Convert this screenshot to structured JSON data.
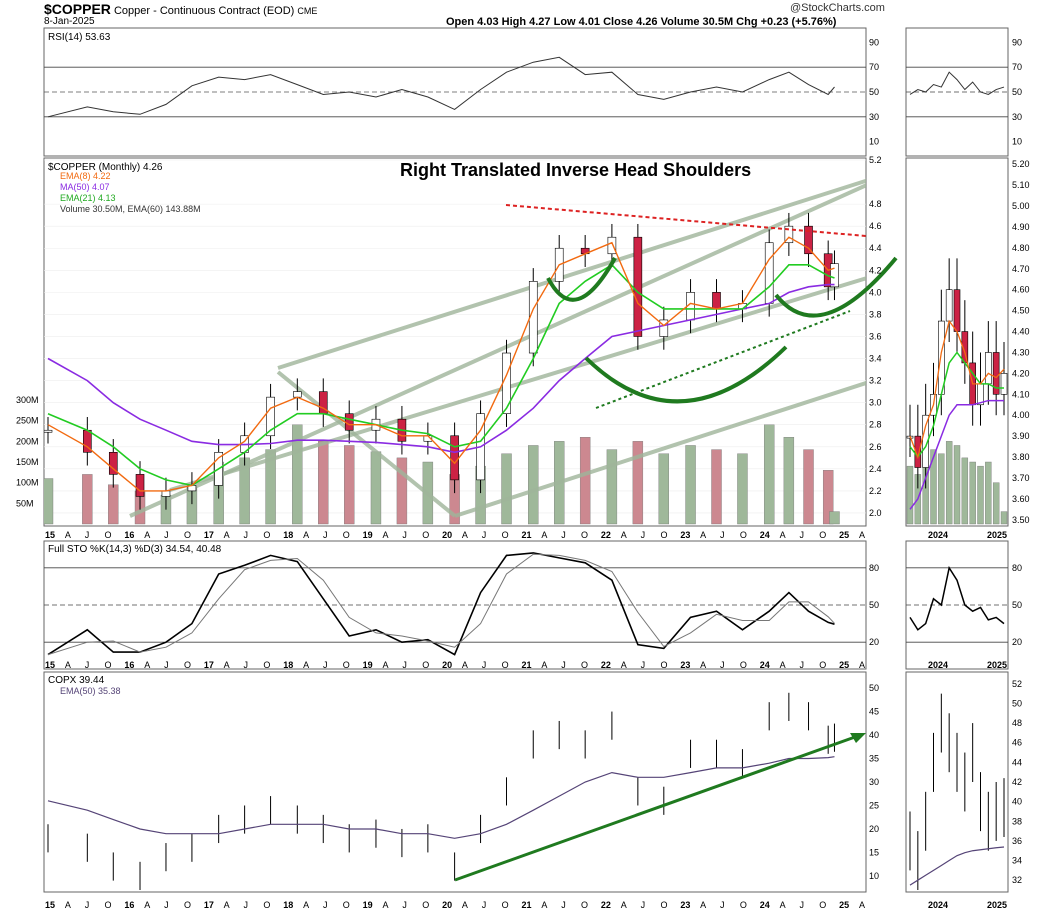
{
  "header": {
    "symbol": "$COPPER",
    "name": "Copper - Continuous Contract (EOD)",
    "exchange": "CME",
    "date": "8-Jan-2025",
    "ohlc": "Open 4.03  High 4.27  Low 4.01  Close 4.26  Volume 30.5M  Chg +0.23 (+5.76%)",
    "watermark": "@StockCharts.com"
  },
  "chart_data": [
    {
      "type": "line",
      "panel": "rsi",
      "label": "RSI(14) 53.63",
      "yticks": [
        "90",
        "70",
        "50",
        "30",
        "10"
      ],
      "ylim": [
        0,
        100
      ],
      "levels": [
        70,
        50,
        30
      ],
      "x": [
        2015.0,
        2015.5,
        2015.83,
        2016.17,
        2016.5,
        2016.83,
        2017.17,
        2017.5,
        2017.83,
        2018.17,
        2018.5,
        2018.83,
        2019.17,
        2019.5,
        2019.83,
        2020.17,
        2020.5,
        2020.83,
        2021.17,
        2021.5,
        2021.83,
        2022.17,
        2022.5,
        2022.83,
        2023.17,
        2023.5,
        2023.83,
        2024.17,
        2024.42,
        2024.67,
        2024.92,
        2025.0
      ],
      "values": [
        30,
        38,
        34,
        32,
        40,
        55,
        62,
        60,
        64,
        56,
        48,
        50,
        46,
        52,
        46,
        36,
        52,
        66,
        74,
        78,
        64,
        66,
        48,
        44,
        50,
        54,
        50,
        60,
        66,
        56,
        48,
        54
      ]
    },
    {
      "type": "candlestick",
      "panel": "price",
      "label": "$COPPER (Monthly) 4.26",
      "annotation": "Right Translated Inverse Head Shoulders",
      "legend": [
        "EMA(8) 4.22",
        "MA(50) 4.07",
        "EMA(21) 4.13",
        "Volume 30.50M, EMA(60) 143.88M"
      ],
      "ylim": [
        1.9,
        5.2
      ],
      "yticks": [
        "5.2",
        "4.8",
        "4.6",
        "4.4",
        "4.2",
        "4.0",
        "3.8",
        "3.6",
        "3.4",
        "3.2",
        "3.0",
        "2.8",
        "2.6",
        "2.4",
        "2.2",
        "2.0"
      ],
      "volume_ticks": [
        "300M",
        "250M",
        "200M",
        "150M",
        "100M",
        "50M"
      ],
      "x": [
        2015.0,
        2015.5,
        2015.83,
        2016.17,
        2016.5,
        2016.83,
        2017.17,
        2017.5,
        2017.83,
        2018.17,
        2018.5,
        2018.83,
        2019.17,
        2019.5,
        2019.83,
        2020.17,
        2020.5,
        2020.83,
        2021.17,
        2021.5,
        2021.83,
        2022.17,
        2022.5,
        2022.83,
        2023.17,
        2023.5,
        2023.83,
        2024.17,
        2024.42,
        2024.67,
        2024.92,
        2025.0
      ],
      "close": [
        2.75,
        2.55,
        2.35,
        2.15,
        2.2,
        2.25,
        2.55,
        2.7,
        3.05,
        3.1,
        2.9,
        2.75,
        2.85,
        2.65,
        2.7,
        2.3,
        2.9,
        3.45,
        4.1,
        4.4,
        4.35,
        4.5,
        3.6,
        3.75,
        4.0,
        3.85,
        3.9,
        4.45,
        4.6,
        4.35,
        4.05,
        4.26
      ],
      "ema8": [
        2.8,
        2.6,
        2.4,
        2.2,
        2.2,
        2.25,
        2.5,
        2.65,
        2.95,
        3.05,
        2.95,
        2.8,
        2.8,
        2.7,
        2.7,
        2.45,
        2.75,
        3.25,
        3.85,
        4.25,
        4.35,
        4.45,
        3.9,
        3.7,
        3.9,
        3.85,
        3.9,
        4.3,
        4.5,
        4.4,
        4.2,
        4.22
      ],
      "ema21": [
        2.9,
        2.75,
        2.6,
        2.4,
        2.3,
        2.25,
        2.4,
        2.55,
        2.75,
        2.9,
        2.9,
        2.85,
        2.8,
        2.75,
        2.72,
        2.6,
        2.65,
        2.95,
        3.4,
        3.9,
        4.1,
        4.25,
        4.0,
        3.85,
        3.85,
        3.85,
        3.85,
        4.05,
        4.25,
        4.25,
        4.15,
        4.13
      ],
      "ma50": [
        3.4,
        3.2,
        3.0,
        2.85,
        2.75,
        2.65,
        2.62,
        2.62,
        2.63,
        2.66,
        2.66,
        2.65,
        2.64,
        2.62,
        2.6,
        2.55,
        2.6,
        2.75,
        2.95,
        3.2,
        3.4,
        3.6,
        3.65,
        3.7,
        3.75,
        3.8,
        3.85,
        3.9,
        4.0,
        4.05,
        4.07,
        4.07
      ],
      "volume": [
        110,
        120,
        95,
        80,
        70,
        90,
        150,
        160,
        180,
        240,
        200,
        190,
        175,
        160,
        150,
        120,
        140,
        170,
        190,
        200,
        210,
        180,
        200,
        170,
        190,
        180,
        170,
        240,
        210,
        180,
        130,
        30
      ]
    },
    {
      "type": "line",
      "panel": "stochastic",
      "label": "Full STO %K(14,3) %D(3) 34.54, 40.48",
      "yticks": [
        "80",
        "50",
        "20"
      ],
      "ylim": [
        0,
        100
      ],
      "levels": [
        80,
        50,
        20
      ],
      "x": [
        2015.0,
        2015.5,
        2015.83,
        2016.17,
        2016.5,
        2016.83,
        2017.17,
        2017.5,
        2017.83,
        2018.17,
        2018.5,
        2018.83,
        2019.17,
        2019.5,
        2019.83,
        2020.17,
        2020.5,
        2020.83,
        2021.17,
        2021.5,
        2021.83,
        2022.17,
        2022.5,
        2022.83,
        2023.17,
        2023.5,
        2023.83,
        2024.17,
        2024.42,
        2024.67,
        2024.92,
        2025.0
      ],
      "values": [
        10,
        30,
        12,
        12,
        20,
        35,
        75,
        82,
        90,
        85,
        55,
        25,
        30,
        20,
        22,
        10,
        60,
        90,
        92,
        88,
        84,
        70,
        18,
        15,
        40,
        45,
        30,
        45,
        60,
        45,
        36,
        34.54
      ]
    },
    {
      "type": "line",
      "panel": "copx",
      "label": "COPX 39.44",
      "legend": [
        "EMA(50) 35.38"
      ],
      "yticks": [
        "50",
        "45",
        "40",
        "35",
        "30",
        "25",
        "20",
        "15",
        "10"
      ],
      "ylim": [
        7,
        53
      ],
      "x": [
        2015.0,
        2015.5,
        2015.83,
        2016.17,
        2016.5,
        2016.83,
        2017.17,
        2017.5,
        2017.83,
        2018.17,
        2018.5,
        2018.83,
        2019.17,
        2019.5,
        2019.83,
        2020.17,
        2020.5,
        2020.83,
        2021.17,
        2021.5,
        2021.83,
        2022.17,
        2022.5,
        2022.83,
        2023.17,
        2023.5,
        2023.83,
        2024.17,
        2024.42,
        2024.67,
        2024.92,
        2025.0
      ],
      "values": [
        18,
        16,
        12,
        10,
        14,
        16,
        20,
        22,
        24,
        22,
        20,
        18,
        19,
        17,
        18,
        12,
        20,
        28,
        38,
        40,
        38,
        42,
        28,
        26,
        36,
        36,
        34,
        44,
        46,
        44,
        39,
        39.44
      ],
      "ema50": [
        26,
        24,
        22,
        20,
        19,
        19,
        19,
        20,
        21,
        21,
        21,
        20,
        20,
        19,
        19,
        18,
        19,
        21,
        24,
        27,
        30,
        32,
        31,
        31,
        32,
        33,
        33,
        34,
        35,
        35,
        35.2,
        35.38
      ]
    }
  ],
  "xaxis_labels": [
    "15",
    "A",
    "J",
    "O",
    "16",
    "A",
    "J",
    "O",
    "17",
    "A",
    "J",
    "O",
    "18",
    "A",
    "J",
    "O",
    "19",
    "A",
    "J",
    "O",
    "20",
    "A",
    "J",
    "O",
    "21",
    "A",
    "J",
    "O",
    "22",
    "A",
    "J",
    "O",
    "23",
    "A",
    "J",
    "O",
    "24",
    "A",
    "J",
    "O",
    "25",
    "A"
  ],
  "side_panel": {
    "xaxis_labels": [
      "2024",
      "2025"
    ],
    "rsi_ticks": [
      "90",
      "70",
      "50",
      "30",
      "10"
    ],
    "price_ticks": [
      "5.20",
      "5.10",
      "5.00",
      "4.90",
      "4.80",
      "4.70",
      "4.60",
      "4.50",
      "4.40",
      "4.30",
      "4.20",
      "4.10",
      "4.00",
      "3.90",
      "3.80",
      "3.70",
      "3.60",
      "3.50"
    ],
    "sto_ticks": [
      "80",
      "50",
      "20"
    ],
    "copx_ticks": [
      "52",
      "50",
      "48",
      "46",
      "44",
      "42",
      "40",
      "38",
      "36",
      "34",
      "32"
    ]
  },
  "colors": {
    "ema8": "#f26a10",
    "ma50": "#8a2be2",
    "ema21": "#22cc22",
    "up_candle": "#ffffff",
    "down_candle": "#cc2244",
    "volume_up": "#9fb89a",
    "volume_down": "#cc8890",
    "channel": "#9fb59a",
    "resistance": "#dd2222",
    "pattern": "#1f7a1f"
  }
}
